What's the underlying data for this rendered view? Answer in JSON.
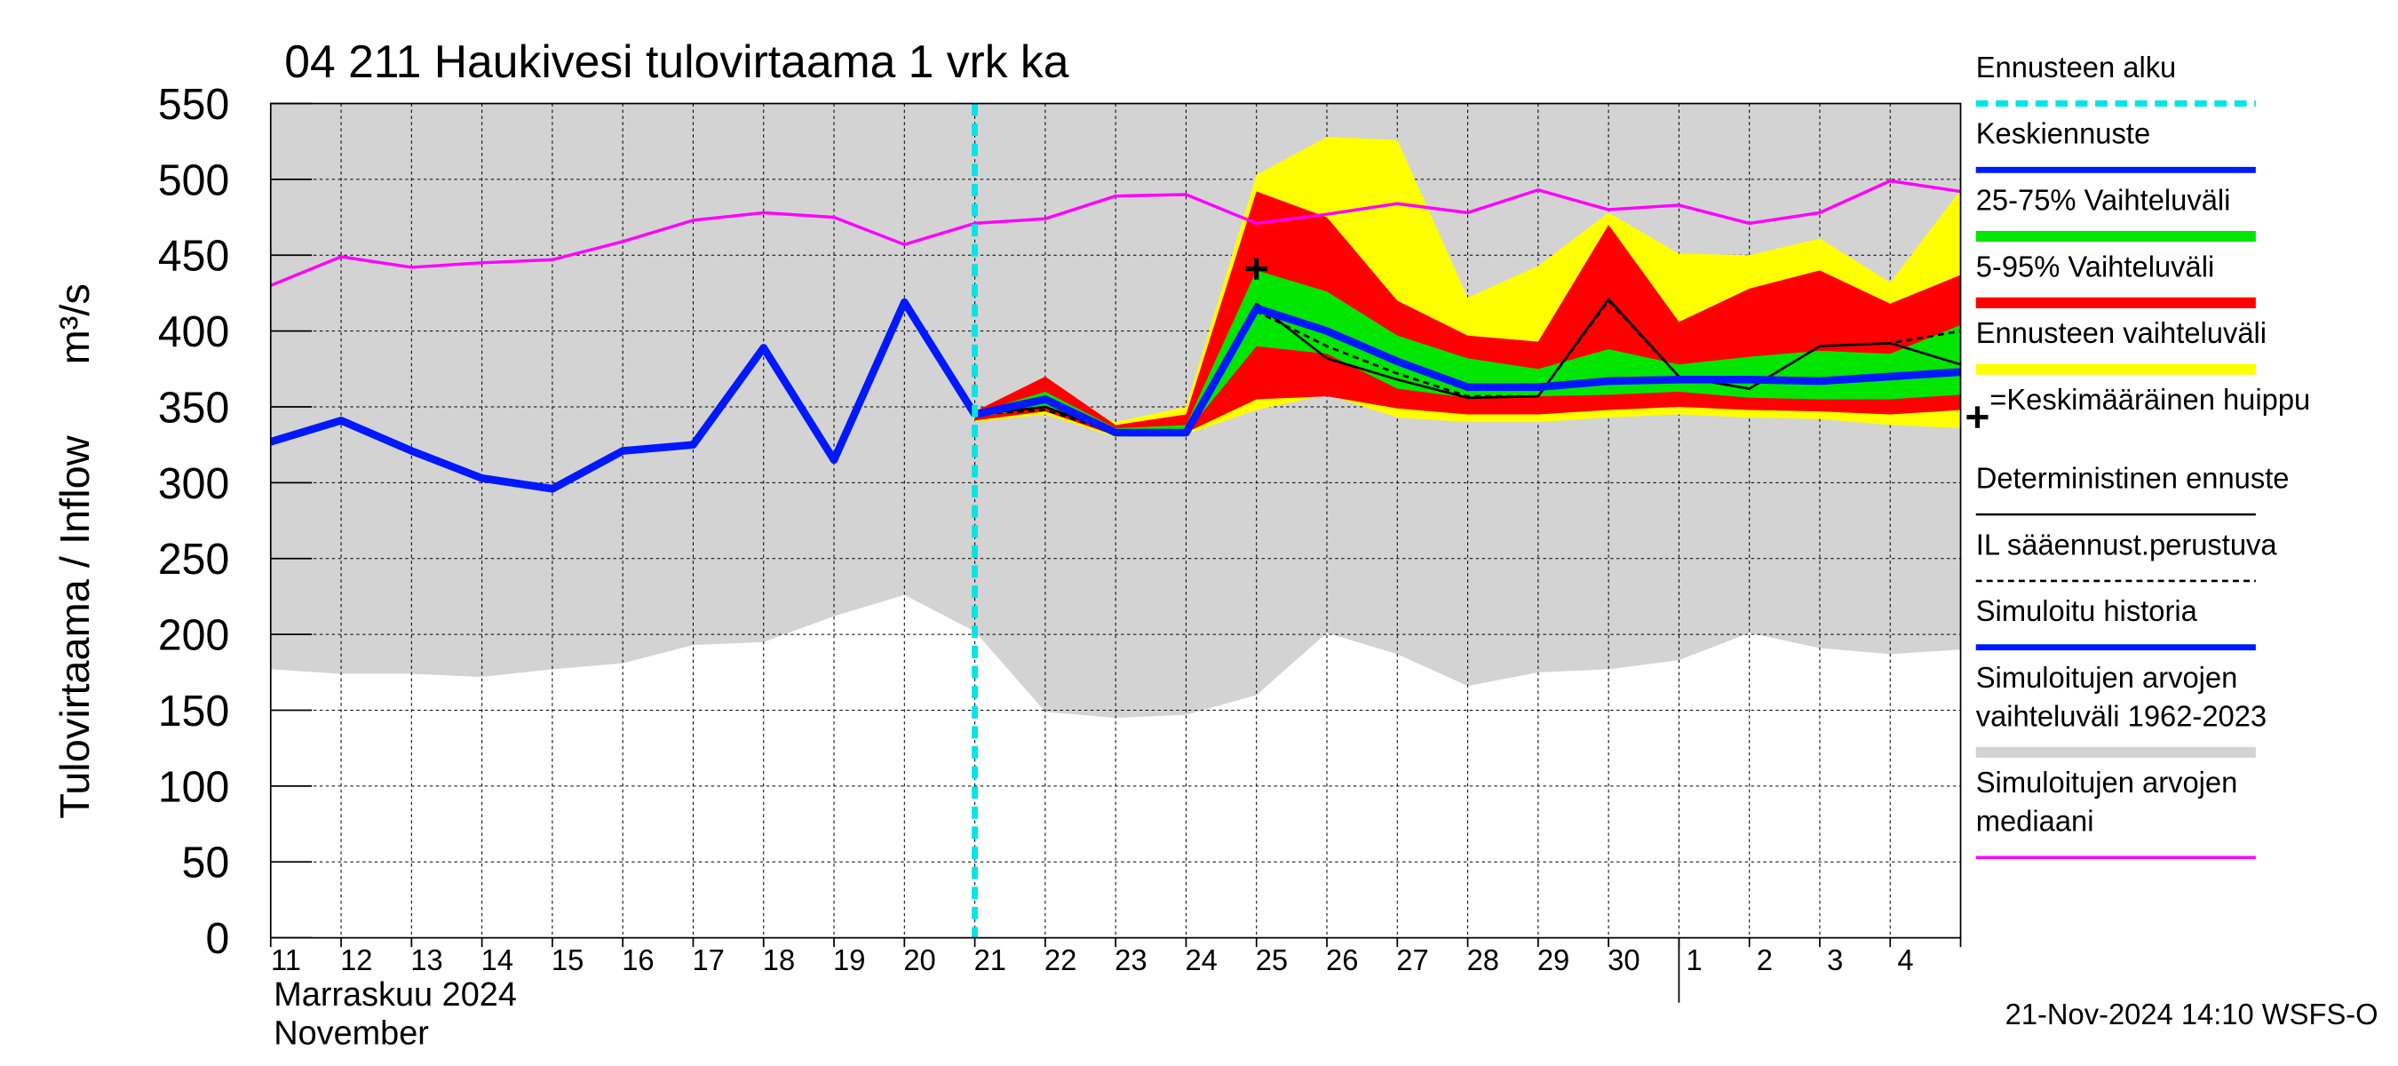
{
  "chart_data": {
    "type": "line",
    "title": "04 211 Haukivesi tulovirtaama 1 vrk ka",
    "y_label": "Tulovirtaama / Inflow",
    "y_unit": "m³/s",
    "x_month_label": "Marraskuu 2024",
    "x_month_label_en": "November",
    "footer": "21-Nov-2024 14:10 WSFS-O",
    "categories": [
      "11",
      "12",
      "13",
      "14",
      "15",
      "16",
      "17",
      "18",
      "19",
      "20",
      "21",
      "22",
      "23",
      "24",
      "25",
      "26",
      "27",
      "28",
      "29",
      "30",
      "1",
      "2",
      "3",
      "4",
      null
    ],
    "month_break_index": 20,
    "ylim": [
      0,
      550
    ],
    "yticks": [
      0,
      50,
      100,
      150,
      200,
      250,
      300,
      350,
      400,
      450,
      500,
      550
    ],
    "grid": true,
    "series": [
      {
        "name": "Ennusteen alku",
        "kind": "vline",
        "color": "#00e5e5",
        "x": 10
      },
      {
        "name": "Keskiennuste",
        "kind": "line",
        "color": "#0018ff",
        "width": 5,
        "values": [
          null,
          null,
          null,
          null,
          null,
          null,
          null,
          null,
          null,
          null,
          345,
          355,
          333,
          333,
          415,
          400,
          380,
          363,
          363,
          367,
          368,
          368,
          367,
          370,
          373
        ]
      },
      {
        "name": "25-75% Vaihteluväli",
        "kind": "band",
        "color": "#00e600",
        "upper": [
          null,
          null,
          null,
          null,
          null,
          null,
          null,
          null,
          null,
          null,
          346,
          360,
          336,
          338,
          440,
          426,
          397,
          382,
          375,
          388,
          378,
          383,
          387,
          385,
          404
        ],
        "lower": [
          null,
          null,
          null,
          null,
          null,
          null,
          null,
          null,
          null,
          null,
          343,
          350,
          332,
          333,
          390,
          385,
          362,
          356,
          357,
          358,
          360,
          356,
          355,
          355,
          358
        ]
      },
      {
        "name": "5-95% Vaihteluväli",
        "kind": "band",
        "color": "#ff0000",
        "upper": [
          null,
          null,
          null,
          null,
          null,
          null,
          null,
          null,
          null,
          null,
          347,
          370,
          338,
          345,
          492,
          475,
          420,
          397,
          393,
          470,
          406,
          428,
          440,
          418,
          437
        ],
        "lower": [
          null,
          null,
          null,
          null,
          null,
          null,
          null,
          null,
          null,
          null,
          341,
          347,
          331,
          333,
          355,
          357,
          349,
          345,
          345,
          348,
          350,
          348,
          347,
          345,
          348
        ]
      },
      {
        "name": "Ennusteen vaihteluväli",
        "kind": "band",
        "color": "#ffff00",
        "upper": [
          null,
          null,
          null,
          null,
          null,
          null,
          null,
          null,
          null,
          null,
          348,
          360,
          340,
          350,
          503,
          528,
          526,
          422,
          443,
          478,
          451,
          450,
          461,
          432,
          493
        ],
        "lower": [
          null,
          null,
          null,
          null,
          null,
          null,
          null,
          null,
          null,
          null,
          340,
          345,
          330,
          332,
          348,
          358,
          343,
          340,
          340,
          343,
          345,
          343,
          342,
          338,
          336
        ]
      },
      {
        "name": "=Keskimääräinen huippu",
        "kind": "marker",
        "color": "#000000",
        "x": 14,
        "value": 441
      },
      {
        "name": "Deterministinen ennuste",
        "kind": "line",
        "color": "#000000",
        "width": 1.5,
        "values": [
          null,
          null,
          null,
          null,
          null,
          null,
          null,
          null,
          null,
          null,
          345,
          350,
          333,
          333,
          418,
          382,
          368,
          356,
          357,
          421,
          370,
          362,
          390,
          392,
          378
        ]
      },
      {
        "name": "IL sääennust.perustuva",
        "kind": "line",
        "color": "#000000",
        "width": 1.5,
        "dash": true,
        "values": [
          null,
          null,
          null,
          null,
          null,
          null,
          null,
          null,
          null,
          null,
          345,
          348,
          333,
          333,
          413,
          390,
          372,
          357,
          357,
          420,
          370,
          362,
          390,
          392,
          400
        ]
      },
      {
        "name": "Simuloitu historia",
        "kind": "line",
        "color": "#0018ff",
        "width": 5,
        "values": [
          327,
          341,
          321,
          303,
          296,
          321,
          325,
          389,
          315,
          419,
          345,
          null,
          null,
          null,
          null,
          null,
          null,
          null,
          null,
          null,
          null,
          null,
          null,
          null,
          null
        ]
      },
      {
        "name": [
          "Simuloitujen arvojen",
          "vaihteluväli 1962-2023"
        ],
        "kind": "band",
        "color": "#d3d3d3",
        "upper": [
          550,
          550,
          550,
          550,
          550,
          550,
          550,
          550,
          550,
          550,
          550,
          550,
          550,
          550,
          550,
          550,
          550,
          550,
          550,
          550,
          550,
          550,
          550,
          550,
          550
        ],
        "lower": [
          177,
          174,
          174,
          172,
          177,
          181,
          193,
          195,
          212,
          226,
          202,
          149,
          145,
          147,
          160,
          201,
          187,
          166,
          175,
          177,
          183,
          201,
          191,
          187,
          190
        ]
      },
      {
        "name": [
          "Simuloitujen arvojen",
          "mediaani"
        ],
        "kind": "line",
        "color": "#ff00ff",
        "width": 2,
        "values": [
          430,
          449,
          442,
          445,
          447,
          459,
          473,
          478,
          475,
          457,
          471,
          474,
          489,
          490,
          471,
          477,
          484,
          478,
          493,
          480,
          483,
          471,
          478,
          499,
          492
        ]
      }
    ]
  }
}
